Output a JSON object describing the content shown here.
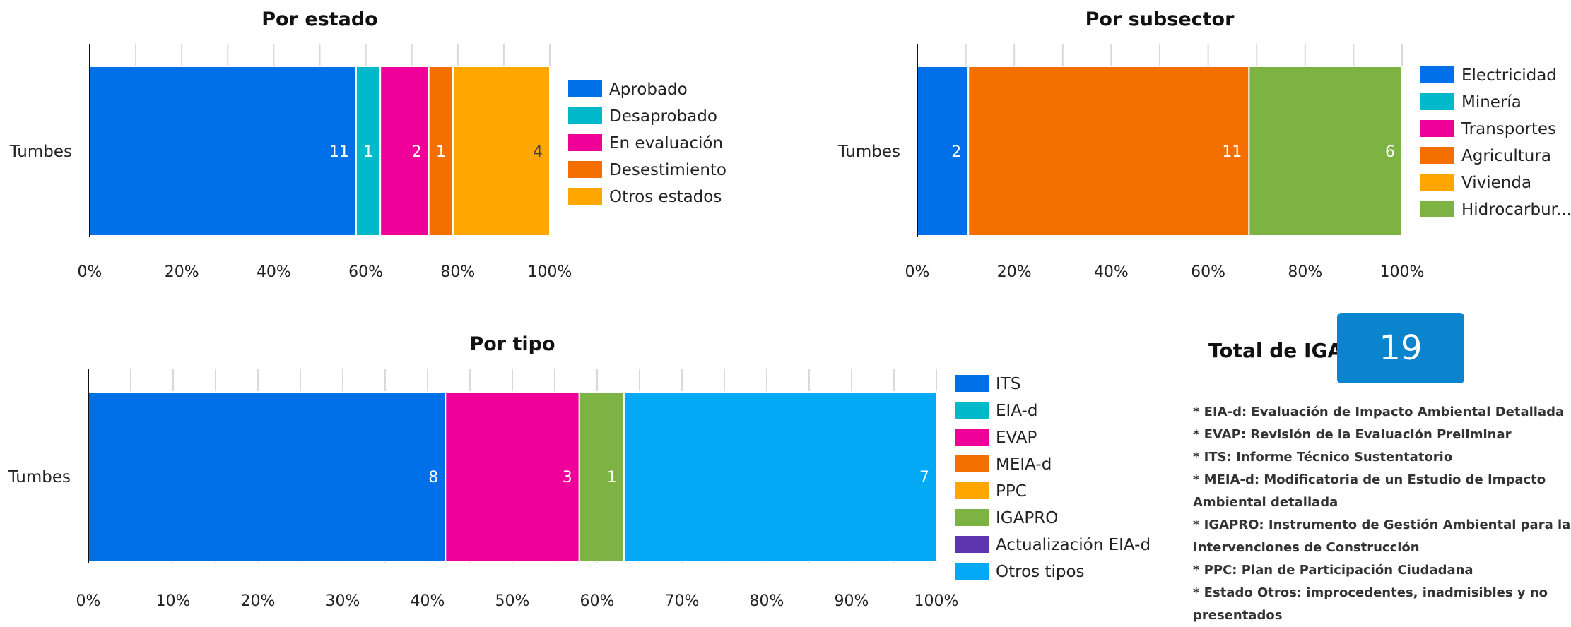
{
  "chart_data": [
    {
      "id": "estado",
      "type": "bar",
      "orientation": "horizontal",
      "stacked": "percent",
      "title": "Por estado",
      "categories": [
        "Tumbes"
      ],
      "x_ticks": [
        "0%",
        "20%",
        "40%",
        "60%",
        "80%",
        "100%"
      ],
      "xlim": [
        0,
        100
      ],
      "grid": true,
      "legend_position": "right",
      "series": [
        {
          "name": "Aprobado",
          "values": [
            11
          ],
          "color": "#0070E8"
        },
        {
          "name": "Desaprobado",
          "values": [
            1
          ],
          "color": "#00BACC"
        },
        {
          "name": "En evaluación",
          "values": [
            2
          ],
          "color": "#EE0099"
        },
        {
          "name": "Desestimiento",
          "values": [
            1
          ],
          "color": "#F56E00"
        },
        {
          "name": "Otros estados",
          "values": [
            4
          ],
          "color": "#FFA600"
        }
      ]
    },
    {
      "id": "subsector",
      "type": "bar",
      "orientation": "horizontal",
      "stacked": "percent",
      "title": "Por subsector",
      "categories": [
        "Tumbes"
      ],
      "x_ticks": [
        "0%",
        "20%",
        "40%",
        "60%",
        "80%",
        "100%"
      ],
      "xlim": [
        0,
        100
      ],
      "grid": true,
      "legend_position": "right",
      "series": [
        {
          "name": "Electricidad",
          "values": [
            2
          ],
          "color": "#0070E8"
        },
        {
          "name": "Minería",
          "values": [
            0
          ],
          "color": "#00BACC"
        },
        {
          "name": "Transportes",
          "values": [
            0
          ],
          "color": "#EE0099"
        },
        {
          "name": "Agricultura",
          "values": [
            11
          ],
          "color": "#F56E00"
        },
        {
          "name": "Vivienda",
          "values": [
            0
          ],
          "color": "#FFA600"
        },
        {
          "name": "Hidrocarbur...",
          "values": [
            6
          ],
          "color": "#7CB342"
        }
      ]
    },
    {
      "id": "tipo",
      "type": "bar",
      "orientation": "horizontal",
      "stacked": "percent",
      "title": "Por tipo",
      "categories": [
        "Tumbes"
      ],
      "x_ticks": [
        "0%",
        "10%",
        "20%",
        "30%",
        "40%",
        "50%",
        "60%",
        "70%",
        "80%",
        "90%",
        "100%"
      ],
      "xlim": [
        0,
        100
      ],
      "grid": true,
      "legend_position": "right",
      "series": [
        {
          "name": "ITS",
          "values": [
            8
          ],
          "color": "#0070E8"
        },
        {
          "name": "EIA-d",
          "values": [
            0
          ],
          "color": "#00BACC"
        },
        {
          "name": "EVAP",
          "values": [
            3
          ],
          "color": "#EE0099"
        },
        {
          "name": "MEIA-d",
          "values": [
            0
          ],
          "color": "#F56E00"
        },
        {
          "name": "PPC",
          "values": [
            0
          ],
          "color": "#FFA600"
        },
        {
          "name": "IGAPRO",
          "values": [
            1
          ],
          "color": "#7CB342"
        },
        {
          "name": "Actualización EIA-d",
          "values": [
            0
          ],
          "color": "#5E35B1"
        },
        {
          "name": "Otros tipos",
          "values": [
            7
          ],
          "color": "#03A9F4"
        }
      ]
    }
  ],
  "summary": {
    "total_label": "Total de IGA",
    "total_value": "19",
    "total_color": "#0A84CC",
    "notes": [
      "* EIA-d: Evaluación de Impacto Ambiental Detallada",
      "* EVAP: Revisión de la Evaluación Preliminar",
      "* ITS: Informe Técnico Sustentatorio",
      "* MEIA-d: Modificatoria de un Estudio de Impacto Ambiental detallada",
      "* IGAPRO: Instrumento de Gestión Ambiental para las Intervenciones de Construcción",
      "* PPC: Plan de Participación Ciudadana",
      "* Estado Otros: improcedentes, inadmisibles y no presentados"
    ]
  }
}
